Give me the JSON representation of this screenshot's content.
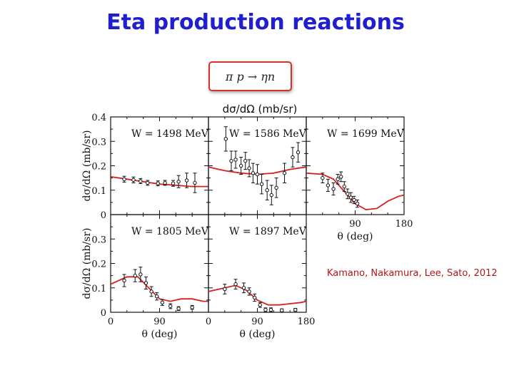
{
  "slide": {
    "title": "Eta production reactions",
    "reaction": "π  p → ηn",
    "units_label": "dσ/dΩ (mb/sr)",
    "citation": "Kamano, Nakamura, Lee, Sato, 2012"
  },
  "colors": {
    "title": "#1f1fd0",
    "model_curve": "#d62020",
    "data_points": "#111111",
    "citation": "#b01818"
  },
  "chart_data": {
    "type": "scatter",
    "x_axis": {
      "label": "θ (deg)",
      "range": [
        0,
        180
      ],
      "ticks": [
        "0",
        "90",
        "180"
      ]
    },
    "y_axis": {
      "label": "dσ/dΩ (mb/sr)",
      "range": [
        0,
        0.4
      ],
      "ticks": [
        "0",
        "0.1",
        "0.2",
        "0.3",
        "0.4"
      ]
    },
    "panels": [
      {
        "label": "W = 1498 MeV",
        "data": [
          {
            "x": 25,
            "y": 0.145,
            "err": 0.012
          },
          {
            "x": 42,
            "y": 0.142,
            "err": 0.012
          },
          {
            "x": 55,
            "y": 0.137,
            "err": 0.01
          },
          {
            "x": 68,
            "y": 0.13,
            "err": 0.01
          },
          {
            "x": 87,
            "y": 0.128,
            "err": 0.01
          },
          {
            "x": 100,
            "y": 0.13,
            "err": 0.01
          },
          {
            "x": 115,
            "y": 0.128,
            "err": 0.012
          },
          {
            "x": 125,
            "y": 0.135,
            "err": 0.025
          },
          {
            "x": 140,
            "y": 0.14,
            "err": 0.03
          },
          {
            "x": 155,
            "y": 0.13,
            "err": 0.04
          }
        ],
        "model": [
          [
            0,
            0.155
          ],
          [
            30,
            0.145
          ],
          [
            60,
            0.135
          ],
          [
            90,
            0.125
          ],
          [
            120,
            0.12
          ],
          [
            150,
            0.115
          ],
          [
            180,
            0.115
          ]
        ]
      },
      {
        "label": "W = 1586 MeV",
        "data": [
          {
            "x": 32,
            "y": 0.31,
            "err": 0.05
          },
          {
            "x": 42,
            "y": 0.22,
            "err": 0.04
          },
          {
            "x": 50,
            "y": 0.225,
            "err": 0.035
          },
          {
            "x": 60,
            "y": 0.2,
            "err": 0.035
          },
          {
            "x": 68,
            "y": 0.22,
            "err": 0.035
          },
          {
            "x": 75,
            "y": 0.19,
            "err": 0.035
          },
          {
            "x": 82,
            "y": 0.17,
            "err": 0.04
          },
          {
            "x": 90,
            "y": 0.165,
            "err": 0.04
          },
          {
            "x": 98,
            "y": 0.125,
            "err": 0.04
          },
          {
            "x": 108,
            "y": 0.1,
            "err": 0.04
          },
          {
            "x": 116,
            "y": 0.08,
            "err": 0.04
          },
          {
            "x": 125,
            "y": 0.11,
            "err": 0.04
          },
          {
            "x": 140,
            "y": 0.17,
            "err": 0.04
          },
          {
            "x": 155,
            "y": 0.235,
            "err": 0.04
          },
          {
            "x": 165,
            "y": 0.255,
            "err": 0.04
          }
        ],
        "model": [
          [
            0,
            0.195
          ],
          [
            30,
            0.18
          ],
          [
            60,
            0.17
          ],
          [
            90,
            0.165
          ],
          [
            120,
            0.17
          ],
          [
            150,
            0.185
          ],
          [
            180,
            0.195
          ]
        ]
      },
      {
        "label": "W = 1699 MeV",
        "data": [
          {
            "x": 30,
            "y": 0.15,
            "err": 0.02
          },
          {
            "x": 40,
            "y": 0.12,
            "err": 0.025
          },
          {
            "x": 50,
            "y": 0.105,
            "err": 0.025
          },
          {
            "x": 58,
            "y": 0.145,
            "err": 0.02
          },
          {
            "x": 64,
            "y": 0.155,
            "err": 0.02
          },
          {
            "x": 70,
            "y": 0.115,
            "err": 0.02
          },
          {
            "x": 76,
            "y": 0.085,
            "err": 0.02
          },
          {
            "x": 82,
            "y": 0.07,
            "err": 0.02
          },
          {
            "x": 88,
            "y": 0.06,
            "err": 0.015
          },
          {
            "x": 94,
            "y": 0.045,
            "err": 0.015
          }
        ],
        "model": [
          [
            0,
            0.17
          ],
          [
            30,
            0.165
          ],
          [
            50,
            0.145
          ],
          [
            70,
            0.095
          ],
          [
            90,
            0.045
          ],
          [
            110,
            0.02
          ],
          [
            130,
            0.025
          ],
          [
            150,
            0.055
          ],
          [
            170,
            0.075
          ],
          [
            180,
            0.08
          ]
        ]
      },
      {
        "label": "W = 1805 MeV",
        "data": [
          {
            "x": 25,
            "y": 0.13,
            "err": 0.025
          },
          {
            "x": 45,
            "y": 0.15,
            "err": 0.025
          },
          {
            "x": 55,
            "y": 0.155,
            "err": 0.03
          },
          {
            "x": 65,
            "y": 0.12,
            "err": 0.025
          },
          {
            "x": 75,
            "y": 0.085,
            "err": 0.02
          },
          {
            "x": 85,
            "y": 0.065,
            "err": 0.015
          },
          {
            "x": 95,
            "y": 0.04,
            "err": 0.012
          },
          {
            "x": 110,
            "y": 0.025,
            "err": 0.01
          },
          {
            "x": 125,
            "y": 0.015,
            "err": 0.008
          },
          {
            "x": 150,
            "y": 0.02,
            "err": 0.008
          }
        ],
        "model": [
          [
            0,
            0.115
          ],
          [
            30,
            0.145
          ],
          [
            50,
            0.145
          ],
          [
            70,
            0.1
          ],
          [
            90,
            0.055
          ],
          [
            110,
            0.045
          ],
          [
            130,
            0.055
          ],
          [
            150,
            0.055
          ],
          [
            170,
            0.045
          ],
          [
            180,
            0.045
          ]
        ]
      },
      {
        "label": "W = 1897 MeV",
        "data": [
          {
            "x": 30,
            "y": 0.095,
            "err": 0.02
          },
          {
            "x": 50,
            "y": 0.115,
            "err": 0.02
          },
          {
            "x": 65,
            "y": 0.1,
            "err": 0.02
          },
          {
            "x": 75,
            "y": 0.085,
            "err": 0.015
          },
          {
            "x": 85,
            "y": 0.06,
            "err": 0.015
          },
          {
            "x": 95,
            "y": 0.03,
            "err": 0.01
          },
          {
            "x": 105,
            "y": 0.01,
            "err": 0.008
          },
          {
            "x": 115,
            "y": 0.01,
            "err": 0.008
          },
          {
            "x": 135,
            "y": 0.008,
            "err": 0.006
          },
          {
            "x": 160,
            "y": 0.01,
            "err": 0.006
          }
        ],
        "model": [
          [
            0,
            0.085
          ],
          [
            30,
            0.1
          ],
          [
            50,
            0.11
          ],
          [
            70,
            0.09
          ],
          [
            90,
            0.05
          ],
          [
            110,
            0.03
          ],
          [
            130,
            0.03
          ],
          [
            150,
            0.035
          ],
          [
            170,
            0.04
          ],
          [
            180,
            0.045
          ]
        ]
      }
    ]
  }
}
